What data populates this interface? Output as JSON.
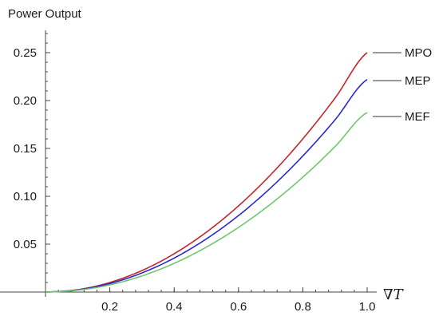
{
  "chart_data": {
    "type": "line",
    "title": "",
    "xlabel": "∇T",
    "ylabel": "Power Output",
    "xlim": [
      0,
      1.0
    ],
    "ylim": [
      0,
      0.27
    ],
    "xticks": [
      0.2,
      0.4,
      0.6,
      0.8,
      1.0
    ],
    "xtick_labels": [
      "0.2",
      "0.4",
      "0.6",
      "0.8",
      "1.0"
    ],
    "yticks": [
      0.05,
      0.1,
      0.15,
      0.2,
      0.25
    ],
    "ytick_labels": [
      "0.05",
      "0.10",
      "0.15",
      "0.20",
      "0.25"
    ],
    "grid": false,
    "legend_position": "right",
    "x": [
      0,
      0.1,
      0.2,
      0.3,
      0.4,
      0.5,
      0.6,
      0.7,
      0.8,
      0.9,
      1.0
    ],
    "series": [
      {
        "name": "MPO",
        "color": "#c0282d",
        "values": [
          0,
          0.0025,
          0.01,
          0.0225,
          0.04,
          0.0625,
          0.09,
          0.1225,
          0.16,
          0.2025,
          0.25
        ]
      },
      {
        "name": "MEP",
        "color": "#2a2ad0",
        "values": [
          0,
          0.00222,
          0.00888,
          0.02,
          0.0355,
          0.0555,
          0.0799,
          0.1088,
          0.1421,
          0.1798,
          0.222
        ]
      },
      {
        "name": "MEF",
        "color": "#6cc86c",
        "values": [
          0,
          0.00188,
          0.0075,
          0.0169,
          0.03,
          0.0469,
          0.0675,
          0.0919,
          0.12,
          0.1519,
          0.1875
        ]
      }
    ]
  }
}
